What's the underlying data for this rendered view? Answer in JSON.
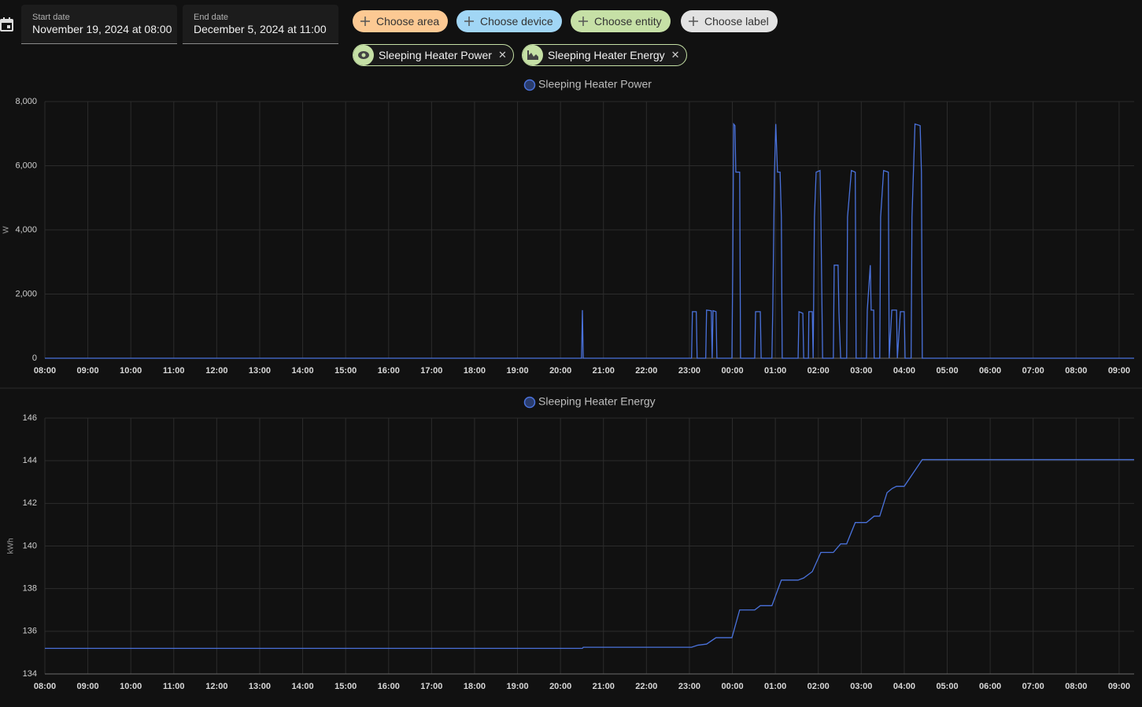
{
  "date_range": {
    "start": {
      "label": "Start date",
      "value": "November 19, 2024 at 08:00"
    },
    "end": {
      "label": "End date",
      "value": "December 5, 2024 at 11:00"
    }
  },
  "filter_chips": [
    "Choose area",
    "Choose device",
    "Choose entity",
    "Choose label"
  ],
  "selected_chips": [
    "Sleeping Heater Power",
    "Sleeping Heater Energy"
  ],
  "chart_data": [
    {
      "type": "line",
      "y_label": "W",
      "grid": true,
      "xlim": [
        8,
        33.35
      ],
      "xticks": [
        {
          "value": 8,
          "label": "08:00"
        },
        {
          "value": 9,
          "label": "09:00"
        },
        {
          "value": 10,
          "label": "10:00"
        },
        {
          "value": 11,
          "label": "11:00"
        },
        {
          "value": 12,
          "label": "12:00"
        },
        {
          "value": 13,
          "label": "13:00"
        },
        {
          "value": 14,
          "label": "14:00"
        },
        {
          "value": 15,
          "label": "15:00"
        },
        {
          "value": 16,
          "label": "16:00"
        },
        {
          "value": 17,
          "label": "17:00"
        },
        {
          "value": 18,
          "label": "18:00"
        },
        {
          "value": 19,
          "label": "19:00"
        },
        {
          "value": 20,
          "label": "20:00"
        },
        {
          "value": 21,
          "label": "21:00"
        },
        {
          "value": 22,
          "label": "22:00"
        },
        {
          "value": 23,
          "label": "23:00"
        },
        {
          "value": 24,
          "label": "00:00"
        },
        {
          "value": 25,
          "label": "01:00"
        },
        {
          "value": 26,
          "label": "02:00"
        },
        {
          "value": 27,
          "label": "03:00"
        },
        {
          "value": 28,
          "label": "04:00"
        },
        {
          "value": 29,
          "label": "05:00"
        },
        {
          "value": 30,
          "label": "06:00"
        },
        {
          "value": 31,
          "label": "07:00"
        },
        {
          "value": 32,
          "label": "08:00"
        },
        {
          "value": 33,
          "label": "09:00"
        }
      ],
      "ylim": [
        0,
        8000
      ],
      "yticks": [
        0,
        {
          "value": 2000,
          "label": "2,000"
        },
        {
          "value": 4000,
          "label": "4,000"
        },
        {
          "value": 6000,
          "label": "6,000"
        },
        {
          "value": 8000,
          "label": "8,000"
        }
      ],
      "x": [
        8,
        20.49,
        20.51,
        20.53,
        23.05,
        23.07,
        23.16,
        23.18,
        23.38,
        23.4,
        23.51,
        23.53,
        23.55,
        23.62,
        23.64,
        23.99,
        24.01,
        24.03,
        24.06,
        24.08,
        24.17,
        24.19,
        24.52,
        24.54,
        24.65,
        24.67,
        24.92,
        24.94,
        24.98,
        25.01,
        25.05,
        25.11,
        25.14,
        25.16,
        25.53,
        25.55,
        25.64,
        25.66,
        25.77,
        25.78,
        25.86,
        25.88,
        25.91,
        25.95,
        26.04,
        26.06,
        26.1,
        26.35,
        26.37,
        26.46,
        26.48,
        26.52,
        26.66,
        26.68,
        26.77,
        26.86,
        26.88,
        27.12,
        27.14,
        27.21,
        27.23,
        27.29,
        27.3,
        27.43,
        27.45,
        27.52,
        27.63,
        27.65,
        27.71,
        27.82,
        27.84,
        27.91,
        28,
        28.02,
        28.16,
        28.18,
        28.25,
        28.37,
        28.4,
        28.42,
        33.35
      ],
      "series": [
        {
          "name": "Sleeping Heater Power",
          "color": "#4a72dc",
          "values": [
            0,
            0,
            1500,
            0,
            0,
            1450,
            1450,
            0,
            0,
            1500,
            1480,
            0,
            1480,
            1450,
            0,
            0,
            3000,
            7300,
            7250,
            5800,
            5800,
            0,
            0,
            1450,
            1450,
            0,
            0,
            1500,
            5800,
            7300,
            5800,
            5800,
            4400,
            0,
            0,
            1450,
            1400,
            0,
            0,
            1450,
            1450,
            0,
            4400,
            5800,
            5850,
            4400,
            0,
            0,
            2900,
            2900,
            1450,
            0,
            0,
            4400,
            5850,
            5800,
            0,
            0,
            1500,
            2900,
            1500,
            1500,
            0,
            0,
            4400,
            5850,
            5800,
            0,
            1500,
            1500,
            0,
            1450,
            1450,
            0,
            0,
            4400,
            7300,
            7250,
            5800,
            0,
            0
          ]
        }
      ]
    },
    {
      "type": "line",
      "y_label": "kWh",
      "grid": true,
      "xlim": [
        8,
        33.35
      ],
      "xticks": [
        {
          "value": 8,
          "label": "08:00"
        },
        {
          "value": 9,
          "label": "09:00"
        },
        {
          "value": 10,
          "label": "10:00"
        },
        {
          "value": 11,
          "label": "11:00"
        },
        {
          "value": 12,
          "label": "12:00"
        },
        {
          "value": 13,
          "label": "13:00"
        },
        {
          "value": 14,
          "label": "14:00"
        },
        {
          "value": 15,
          "label": "15:00"
        },
        {
          "value": 16,
          "label": "16:00"
        },
        {
          "value": 17,
          "label": "17:00"
        },
        {
          "value": 18,
          "label": "18:00"
        },
        {
          "value": 19,
          "label": "19:00"
        },
        {
          "value": 20,
          "label": "20:00"
        },
        {
          "value": 21,
          "label": "21:00"
        },
        {
          "value": 22,
          "label": "22:00"
        },
        {
          "value": 23,
          "label": "23:00"
        },
        {
          "value": 24,
          "label": "00:00"
        },
        {
          "value": 25,
          "label": "01:00"
        },
        {
          "value": 26,
          "label": "02:00"
        },
        {
          "value": 27,
          "label": "03:00"
        },
        {
          "value": 28,
          "label": "04:00"
        },
        {
          "value": 29,
          "label": "05:00"
        },
        {
          "value": 30,
          "label": "06:00"
        },
        {
          "value": 31,
          "label": "07:00"
        },
        {
          "value": 32,
          "label": "08:00"
        },
        {
          "value": 33,
          "label": "09:00"
        }
      ],
      "ylim": [
        134,
        146
      ],
      "yticks": [
        134,
        136,
        138,
        140,
        142,
        144,
        146
      ],
      "x": [
        8,
        20.51,
        20.53,
        23.05,
        23.2,
        23.4,
        23.62,
        23.99,
        24.17,
        24.52,
        24.65,
        24.92,
        25.14,
        25.53,
        25.66,
        25.86,
        26.06,
        26.35,
        26.52,
        26.66,
        26.86,
        27.12,
        27.3,
        27.43,
        27.6,
        27.72,
        27.82,
        28,
        28.42,
        33.35
      ],
      "series": [
        {
          "name": "Sleeping Heater Energy",
          "color": "#4a72dc",
          "values": [
            135.2,
            135.2,
            135.25,
            135.25,
            135.35,
            135.4,
            135.7,
            135.7,
            137,
            137,
            137.2,
            137.2,
            138.4,
            138.4,
            138.5,
            138.8,
            139.7,
            139.7,
            140.1,
            140.1,
            141.1,
            141.1,
            141.4,
            141.4,
            142.5,
            142.7,
            142.8,
            142.8,
            144.05,
            144.05
          ]
        }
      ]
    }
  ]
}
